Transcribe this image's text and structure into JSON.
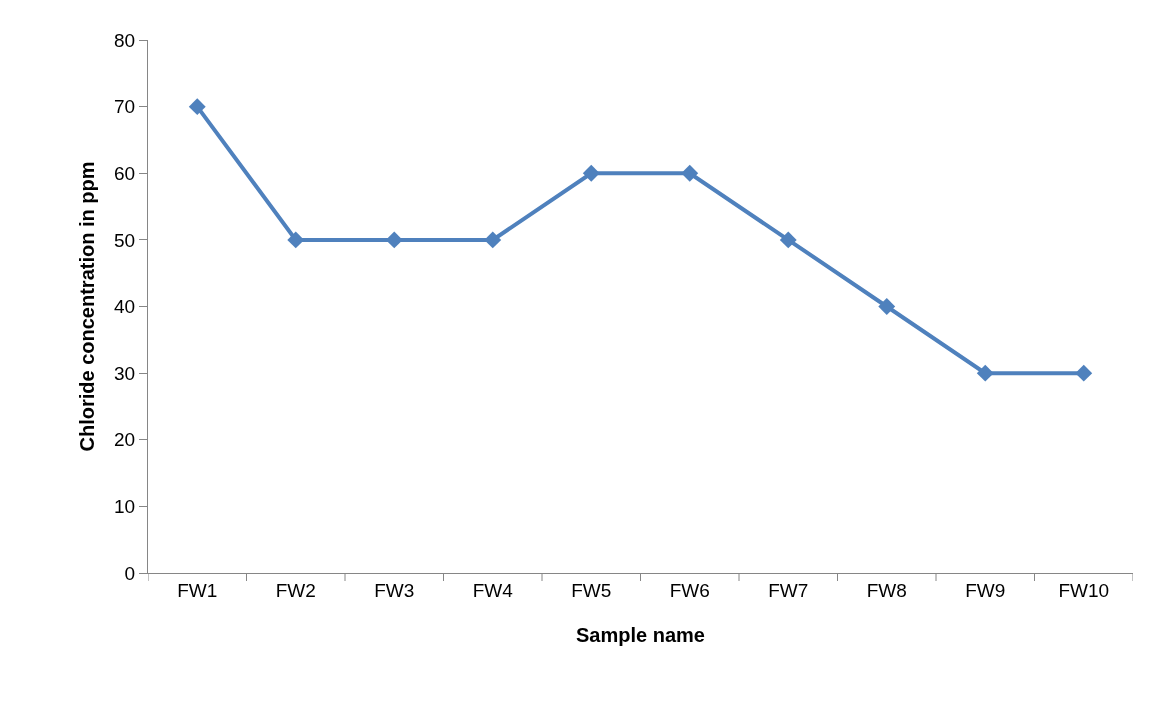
{
  "chart_data": {
    "type": "line",
    "xlabel": "Sample name",
    "ylabel": "Chloride concentration in ppm",
    "categories": [
      "FW1",
      "FW2",
      "FW3",
      "FW4",
      "FW5",
      "FW6",
      "FW7",
      "FW8",
      "FW9",
      "FW10"
    ],
    "series": [
      {
        "color": "#4f81bd",
        "values": [
          70,
          50,
          50,
          50,
          60,
          60,
          50,
          40,
          30,
          30
        ]
      }
    ],
    "ylim": [
      0,
      80
    ],
    "yticks": [
      0,
      10,
      20,
      30,
      40,
      50,
      60,
      70,
      80
    ],
    "grid": false,
    "legend": false,
    "marker": "diamond",
    "line_style": "solid"
  }
}
